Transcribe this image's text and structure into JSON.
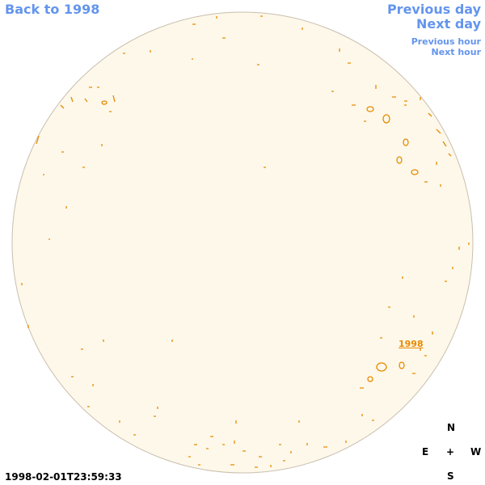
{
  "navigation": {
    "back": "Back to 1998",
    "previous_day": "Previous day",
    "next_day": "Next day",
    "previous_hour": "Previous hour",
    "next_hour": "Next hour"
  },
  "disk": {
    "region_label": "1998"
  },
  "timestamp": "1998-02-01T23:59:33",
  "compass": {
    "north": "N",
    "east": "E",
    "center": "+",
    "west": "W",
    "south": "S"
  }
}
